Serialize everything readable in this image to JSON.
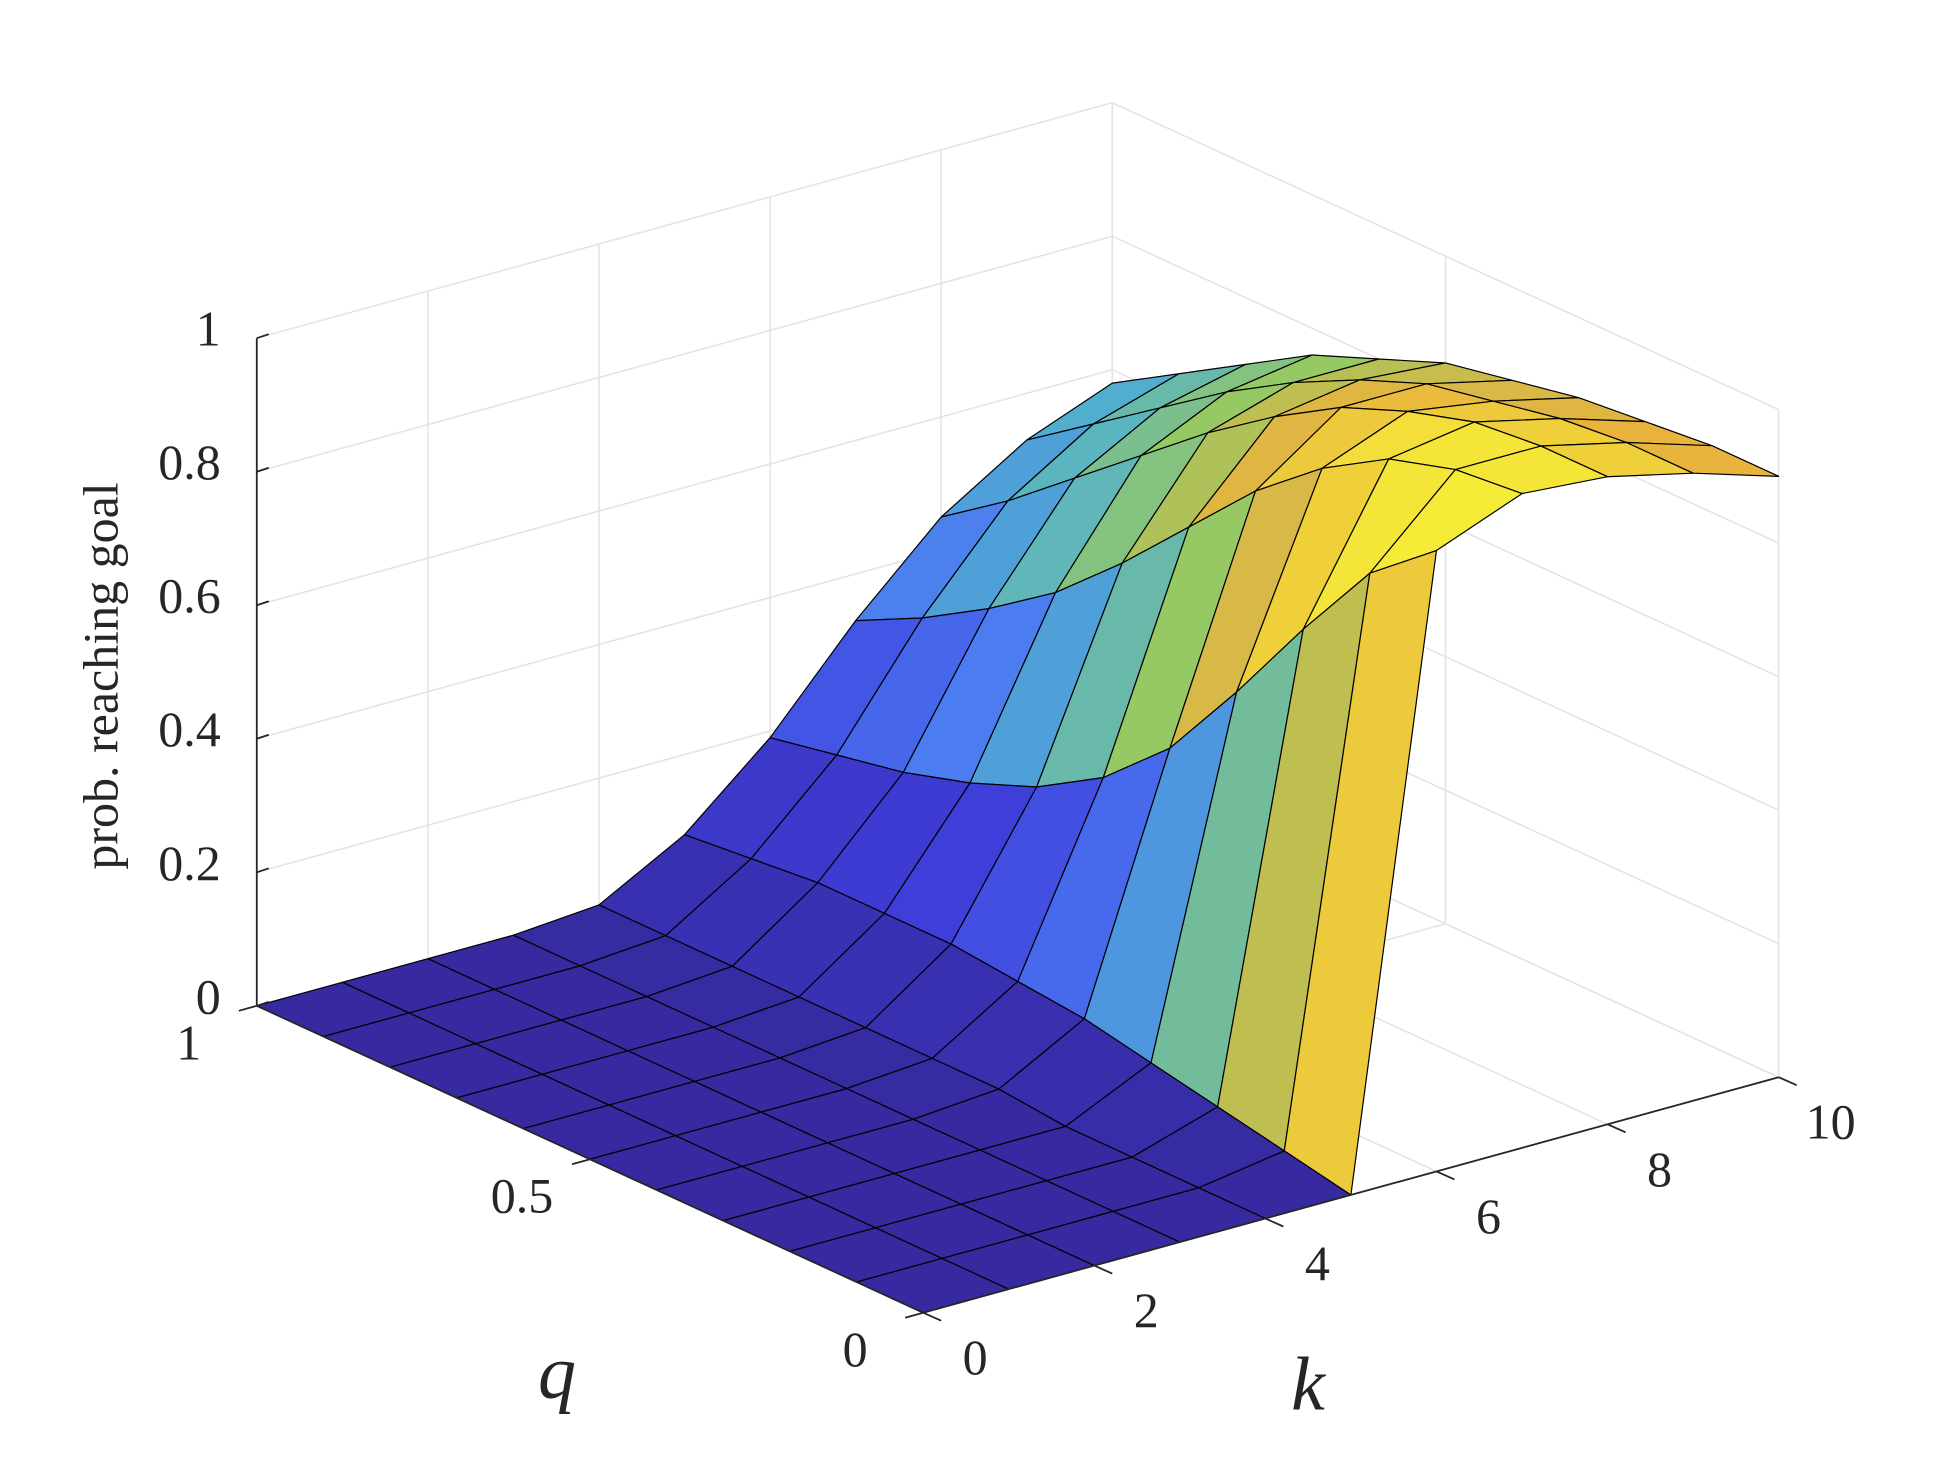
{
  "chart_data": {
    "type": "surface",
    "xlabel": "k",
    "ylabel": "q",
    "zlabel": "prob. reaching goal",
    "x": [
      0,
      1,
      2,
      3,
      4,
      5,
      6,
      7,
      8,
      9,
      10
    ],
    "y": [
      0,
      0.1,
      0.2,
      0.3,
      0.4,
      0.5,
      0.6,
      0.7,
      0.8,
      0.9,
      1
    ],
    "z": [
      [
        0,
        0,
        0,
        0,
        0,
        0,
        0.93,
        0.98,
        0.97,
        0.94,
        0.9
      ],
      [
        0,
        0,
        0,
        0,
        0,
        0.02,
        0.85,
        0.97,
        0.97,
        0.94,
        0.9
      ],
      [
        0,
        0,
        0,
        0,
        0,
        0.04,
        0.72,
        0.94,
        0.96,
        0.93,
        0.89
      ],
      [
        0,
        0,
        0,
        0,
        0,
        0.06,
        0.58,
        0.88,
        0.93,
        0.91,
        0.88
      ],
      [
        0,
        0,
        0,
        0,
        0.01,
        0.08,
        0.45,
        0.8,
        0.89,
        0.89,
        0.86
      ],
      [
        0,
        0,
        0,
        0,
        0.01,
        0.09,
        0.36,
        0.7,
        0.83,
        0.85,
        0.84
      ],
      [
        0,
        0,
        0,
        0,
        0.01,
        0.1,
        0.3,
        0.6,
        0.76,
        0.8,
        0.8
      ],
      [
        0,
        0,
        0,
        0,
        0.01,
        0.1,
        0.26,
        0.51,
        0.68,
        0.74,
        0.76
      ],
      [
        0,
        0,
        0,
        0,
        0.01,
        0.1,
        0.23,
        0.44,
        0.6,
        0.67,
        0.7
      ],
      [
        0,
        0,
        0,
        0,
        0.01,
        0.09,
        0.21,
        0.38,
        0.52,
        0.6,
        0.64
      ],
      [
        0,
        0,
        0,
        0,
        0.01,
        0.08,
        0.19,
        0.33,
        0.45,
        0.53,
        0.58
      ]
    ],
    "xlim": [
      0,
      10
    ],
    "ylim": [
      0,
      1
    ],
    "zlim": [
      0,
      1
    ],
    "xticks": [
      0,
      2,
      4,
      6,
      8,
      10
    ],
    "yticks": [
      0,
      0.5,
      1
    ],
    "zticks": [
      0,
      0.2,
      0.4,
      0.6,
      0.8,
      1
    ],
    "grid": true,
    "colormap": "parula",
    "edgecolor": "#000000"
  }
}
